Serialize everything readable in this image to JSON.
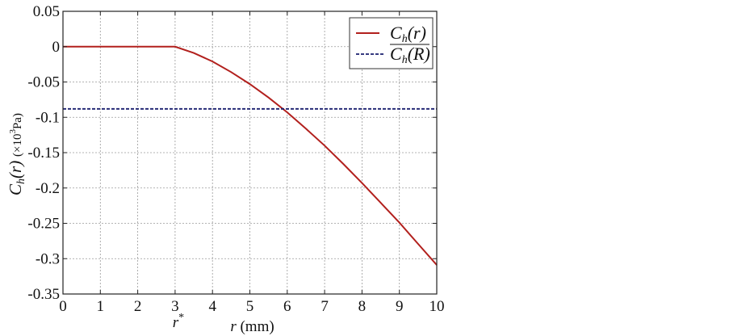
{
  "chart_data": {
    "type": "line",
    "xlabel_var": "r",
    "xlabel_unit": "(mm)",
    "ylabel_var": "C",
    "ylabel_sub": "h",
    "ylabel_arg": "(r)",
    "ylabel_unit": "(×10",
    "ylabel_unit_sup": "3",
    "ylabel_unit_tail": "Pa)",
    "xlim": [
      0,
      10
    ],
    "ylim": [
      -0.35,
      0.05
    ],
    "xticks": [
      0,
      1,
      2,
      3,
      4,
      5,
      6,
      7,
      8,
      9,
      10
    ],
    "xtick_labels": [
      "0",
      "1",
      "2",
      "3",
      "4",
      "5",
      "6",
      "7",
      "8",
      "9",
      "10"
    ],
    "yticks": [
      0.05,
      0,
      -0.05,
      -0.1,
      -0.15,
      -0.2,
      -0.25,
      -0.3,
      -0.35
    ],
    "ytick_labels": [
      "0.05",
      "0",
      "-0.05",
      "-0.1",
      "-0.15",
      "-0.2",
      "-0.25",
      "-0.3",
      "-0.35"
    ],
    "grid": true,
    "legend_position": "top-right",
    "annotation": {
      "text": "r",
      "sup": "*",
      "x": 3
    },
    "series": [
      {
        "name_main": "C",
        "name_sub": "h",
        "name_arg": "(r)",
        "color": "#b2201d",
        "style": "solid",
        "x": [
          0,
          0.5,
          1,
          1.5,
          2,
          2.5,
          3,
          3.5,
          4,
          4.5,
          5,
          5.5,
          6,
          6.5,
          7,
          7.5,
          8,
          8.5,
          9,
          9.5,
          10
        ],
        "y": [
          0,
          0,
          0,
          0,
          0,
          0,
          0,
          -0.009,
          -0.021,
          -0.036,
          -0.053,
          -0.072,
          -0.093,
          -0.116,
          -0.14,
          -0.166,
          -0.193,
          -0.221,
          -0.249,
          -0.279,
          -0.309
        ]
      },
      {
        "name_main": "C",
        "name_sub": "h",
        "name_arg": "(R)",
        "overline": true,
        "color": "#1a1f6e",
        "style": "dashed",
        "x": [
          0,
          10
        ],
        "y": [
          -0.088,
          -0.088
        ]
      }
    ]
  }
}
